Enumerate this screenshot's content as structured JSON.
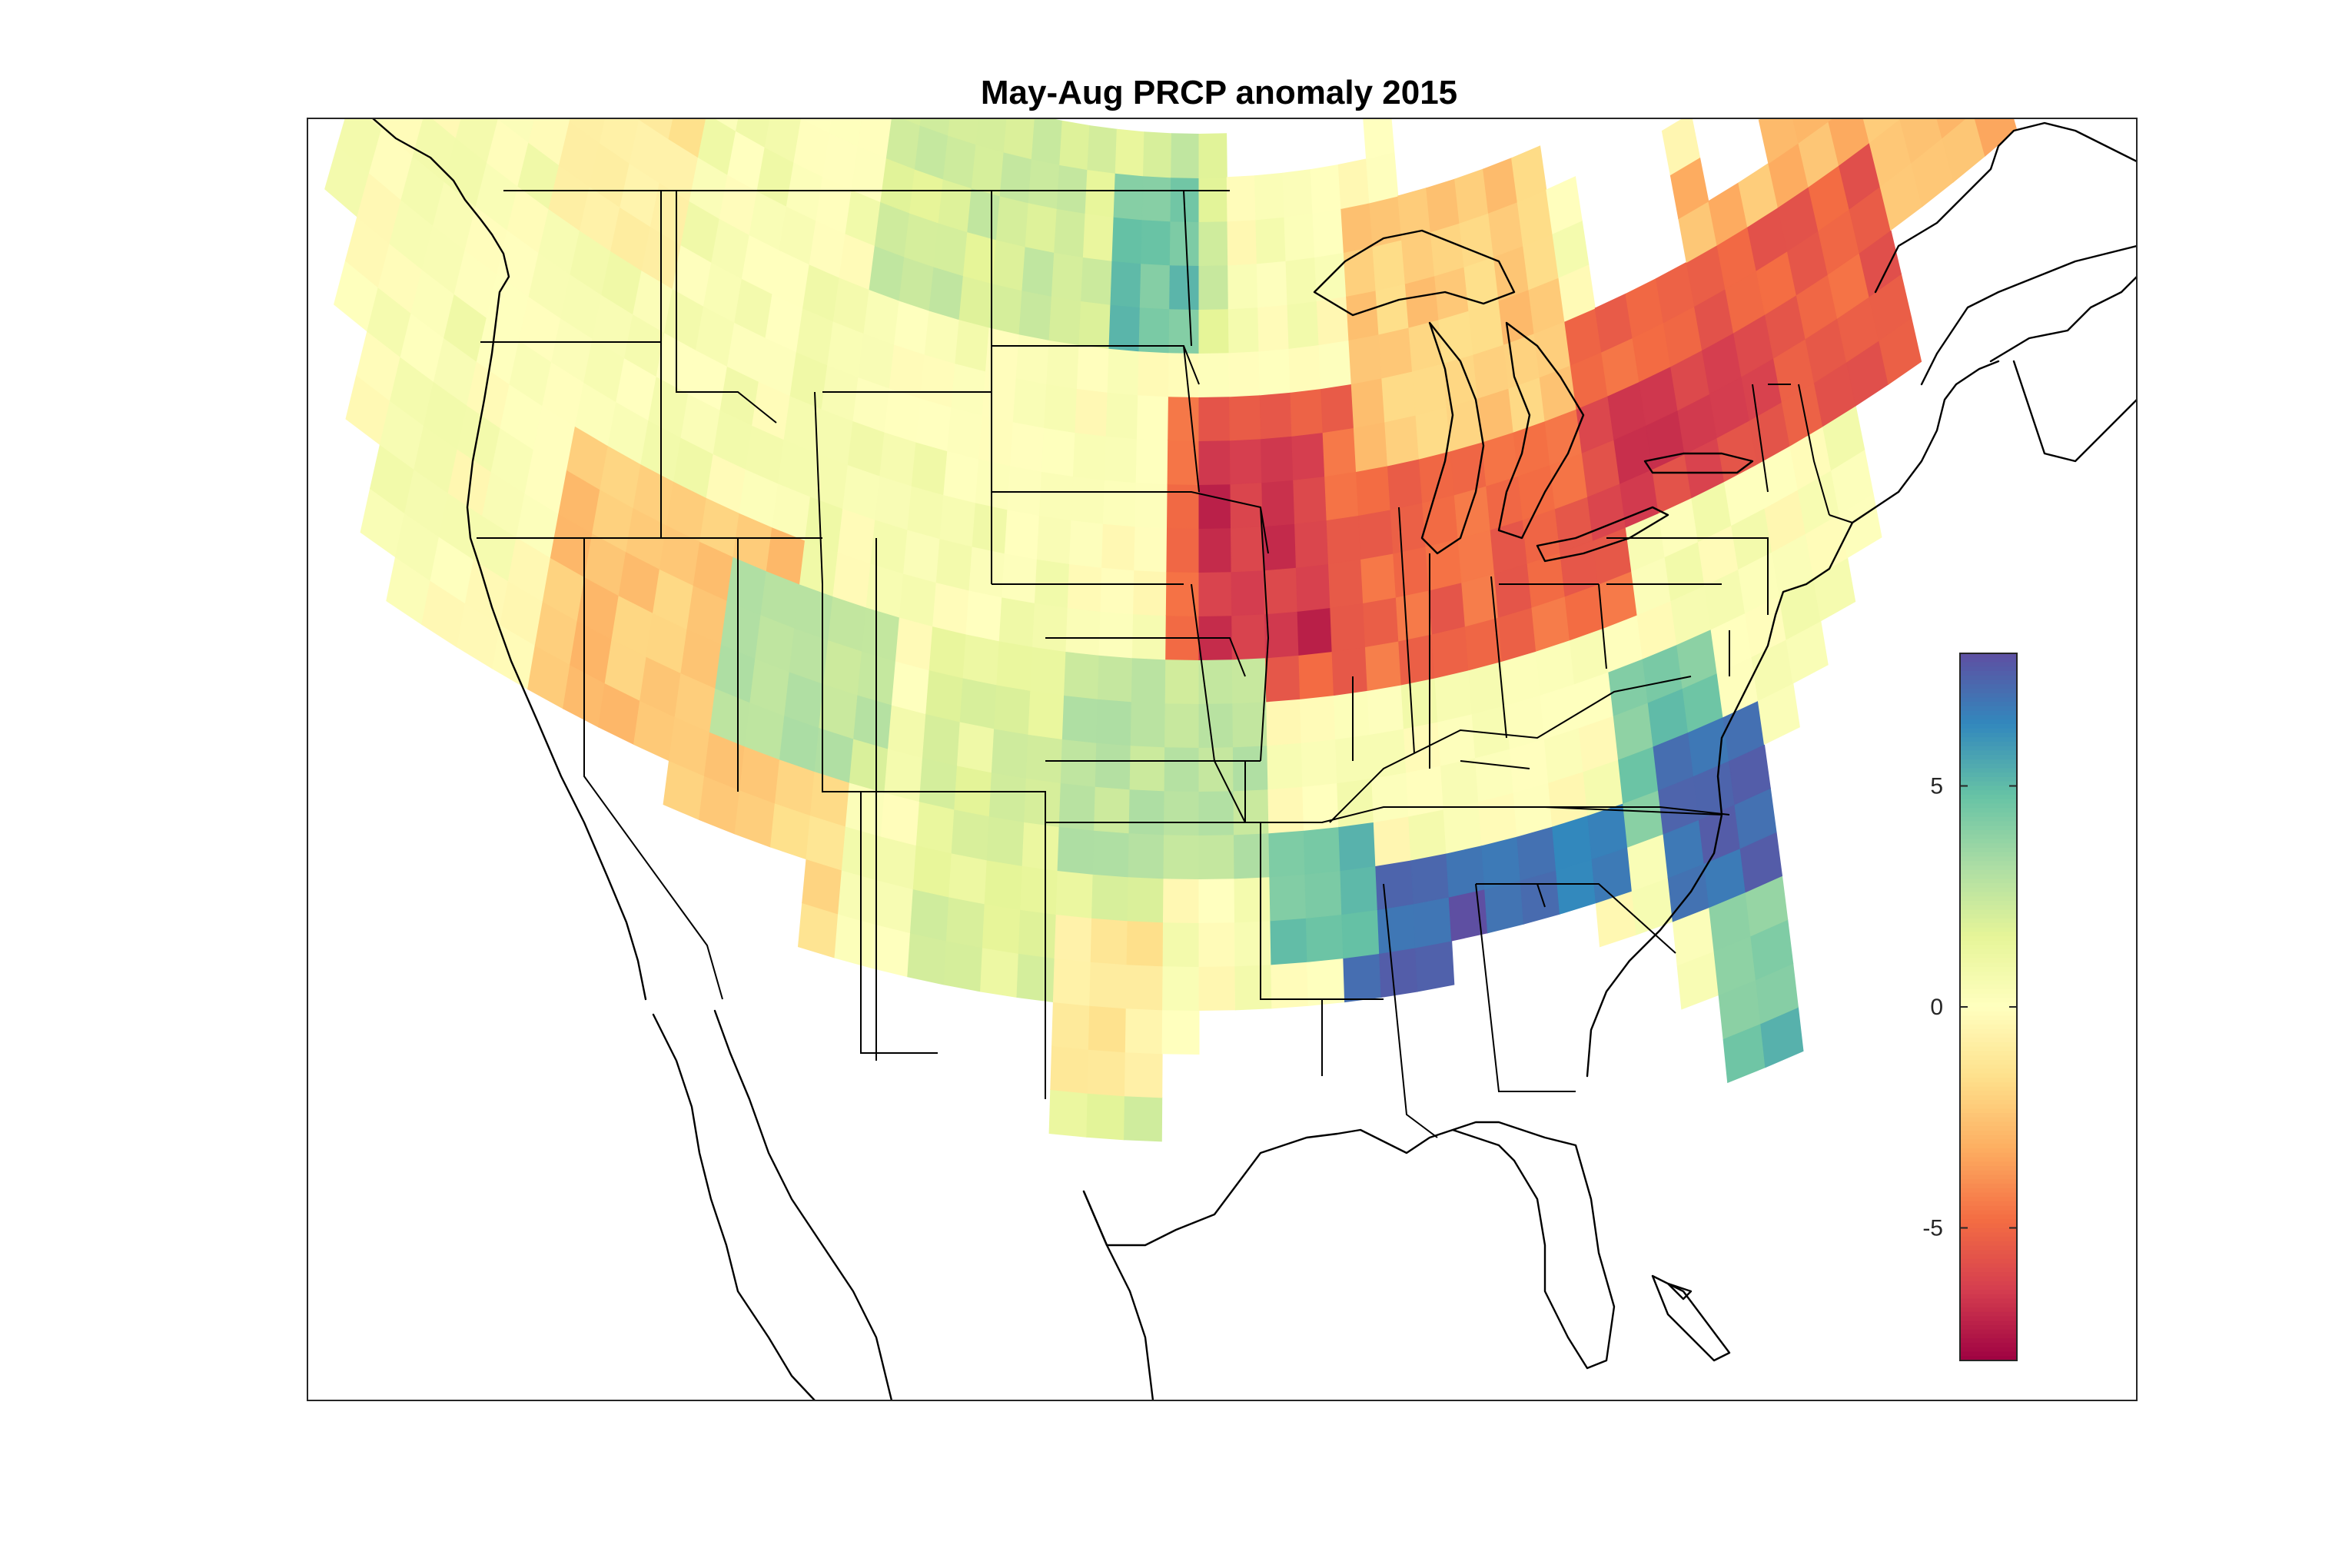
{
  "title": "May-Aug PRCP anomaly 2015",
  "colorbar": {
    "ticks": [
      {
        "value": 5,
        "label": "5"
      },
      {
        "value": 0,
        "label": "0"
      },
      {
        "value": -5,
        "label": "-5"
      }
    ],
    "range": [
      -8,
      8
    ],
    "colormap": "spectral",
    "colors": [
      "#9e0142",
      "#d53e4f",
      "#f46d43",
      "#fdae61",
      "#fee08b",
      "#ffffbf",
      "#e6f598",
      "#abdda4",
      "#66c2a5",
      "#3288bd",
      "#5e4fa2"
    ]
  },
  "chart_data": {
    "type": "heatmap",
    "title": "May-Aug PRCP anomaly 2015",
    "xlabel": "",
    "ylabel": "",
    "colorbar_range": [
      -8,
      8
    ],
    "colorbar_ticks": [
      -5,
      0,
      5
    ],
    "grid_lon_range": [
      -125,
      -66.5
    ],
    "grid_lat_range": [
      25,
      49
    ],
    "grid_resolution_deg": 1.0,
    "regions": [
      {
        "lon": [
          -120.0,
          -100.0
        ],
        "lat": [
          37.0,
          49.0
        ],
        "value": 0.4
      },
      {
        "lon": [
          -107.0,
          -95.0
        ],
        "lat": [
          44.0,
          49.0
        ],
        "value": 2.0
      },
      {
        "lon": [
          -99.0,
          -96.5
        ],
        "lat": [
          44.5,
          47.5
        ],
        "value": 4.6
      },
      {
        "lon": [
          -124.5,
          -122.5
        ],
        "lat": [
          46.5,
          49.0
        ],
        "value": 1.6
      },
      {
        "lon": [
          -116.5,
          -113.5
        ],
        "lat": [
          42.5,
          46.0
        ],
        "value": -1.0
      },
      {
        "lon": [
          -114.5,
          -108.0
        ],
        "lat": [
          31.5,
          37.5
        ],
        "value": -2.4
      },
      {
        "lon": [
          -110.0,
          -105.5
        ],
        "lat": [
          33.5,
          37.0
        ],
        "value": 2.6
      },
      {
        "lon": [
          -100.0,
          -94.5
        ],
        "lat": [
          32.0,
          37.0
        ],
        "value": 2.6
      },
      {
        "lon": [
          -100.0,
          -97.5
        ],
        "lat": [
          27.5,
          31.0
        ],
        "value": -1.0
      },
      {
        "lon": [
          -97.0,
          -83.0
        ],
        "lat": [
          36.5,
          43.0
        ],
        "value": -5.0
      },
      {
        "lon": [
          -96.0,
          -92.5
        ],
        "lat": [
          37.5,
          41.5
        ],
        "value": -6.6
      },
      {
        "lon": [
          -83.0,
          -74.5
        ],
        "lat": [
          38.5,
          42.5
        ],
        "value": -5.2
      },
      {
        "lon": [
          -84.0,
          -78.5
        ],
        "lat": [
          38.5,
          41.0
        ],
        "value": -6.2
      },
      {
        "lon": [
          -80.0,
          -70.0
        ],
        "lat": [
          41.0,
          45.0
        ],
        "value": -2.8
      },
      {
        "lon": [
          -91.0,
          -84.5
        ],
        "lat": [
          41.5,
          46.5
        ],
        "value": -2.2
      },
      {
        "lon": [
          -84.0,
          -81.0
        ],
        "lat": [
          31.0,
          35.0
        ],
        "value": 4.4
      },
      {
        "lon": [
          -82.5,
          -80.5
        ],
        "lat": [
          29.5,
          32.5
        ],
        "value": 7.0
      },
      {
        "lon": [
          -92.0,
          -88.5
        ],
        "lat": [
          29.0,
          32.0
        ],
        "value": 7.5
      },
      {
        "lon": [
          -88.0,
          -84.5
        ],
        "lat": [
          30.0,
          31.5
        ],
        "value": 6.8
      },
      {
        "lon": [
          -93.5,
          -91.0
        ],
        "lat": [
          30.5,
          32.5
        ],
        "value": 4.8
      },
      {
        "lon": [
          -82.0,
          -80.0
        ],
        "lat": [
          25.5,
          29.0
        ],
        "value": 4.0
      },
      {
        "lon": [
          -81.0,
          -80.0
        ],
        "lat": [
          25.0,
          26.0
        ],
        "value": 5.8
      }
    ]
  }
}
